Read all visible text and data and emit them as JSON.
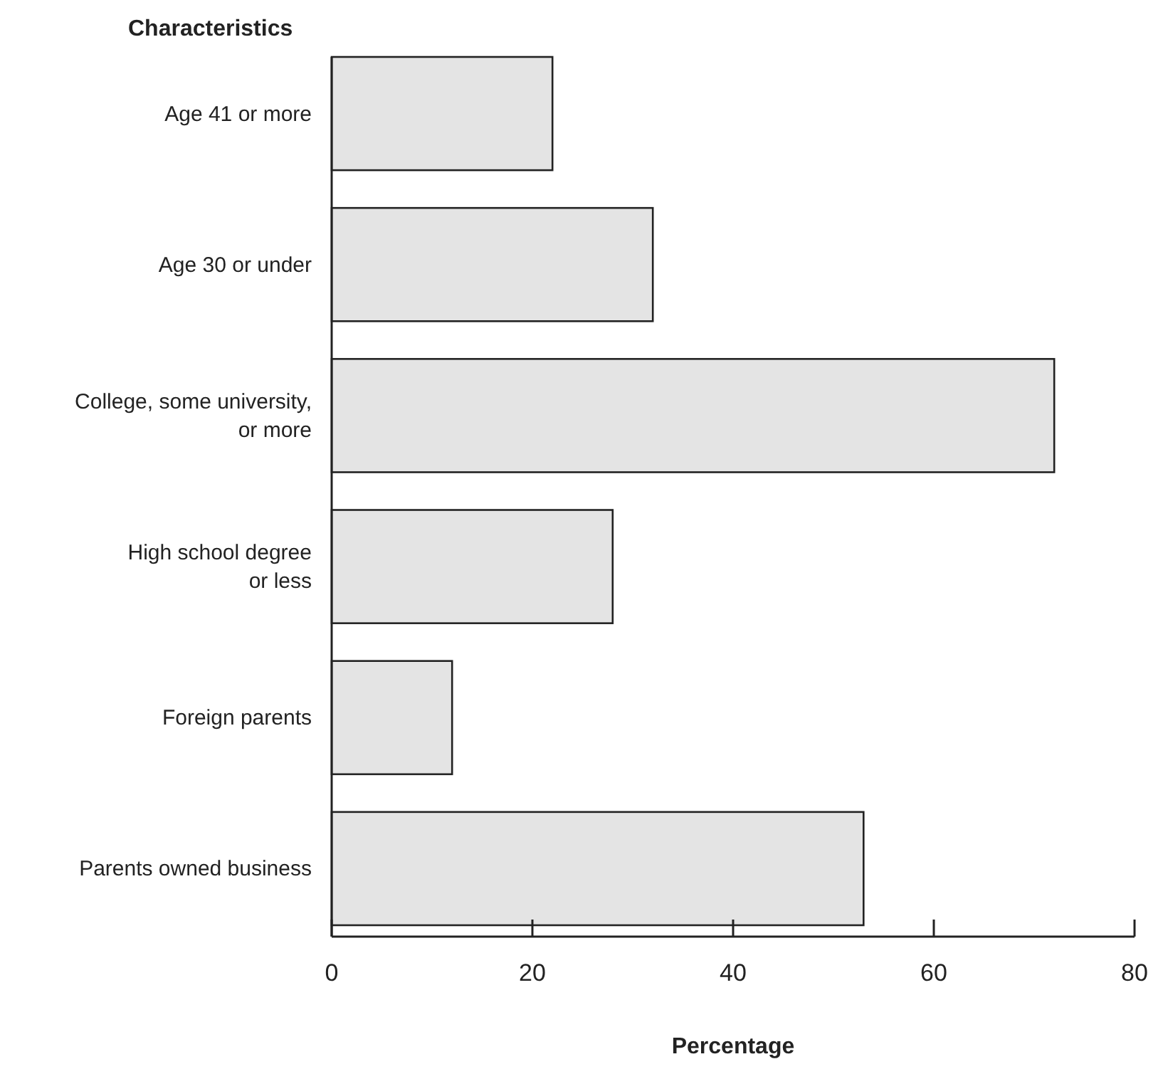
{
  "chart_data": {
    "type": "bar",
    "orientation": "horizontal",
    "ylabel": "Characteristics",
    "xlabel": "Percentage",
    "categories": [
      "Age 41 or more",
      "Age 30 or under",
      "College, some university,\nor more",
      "High school degree\nor less",
      "Foreign parents",
      "Parents owned business"
    ],
    "values": [
      22,
      32,
      72,
      28,
      12,
      53
    ],
    "color": "#e4e4e4",
    "xlim": [
      0,
      80
    ],
    "xticks": [
      0,
      20,
      40,
      60,
      80
    ],
    "grid": false
  }
}
